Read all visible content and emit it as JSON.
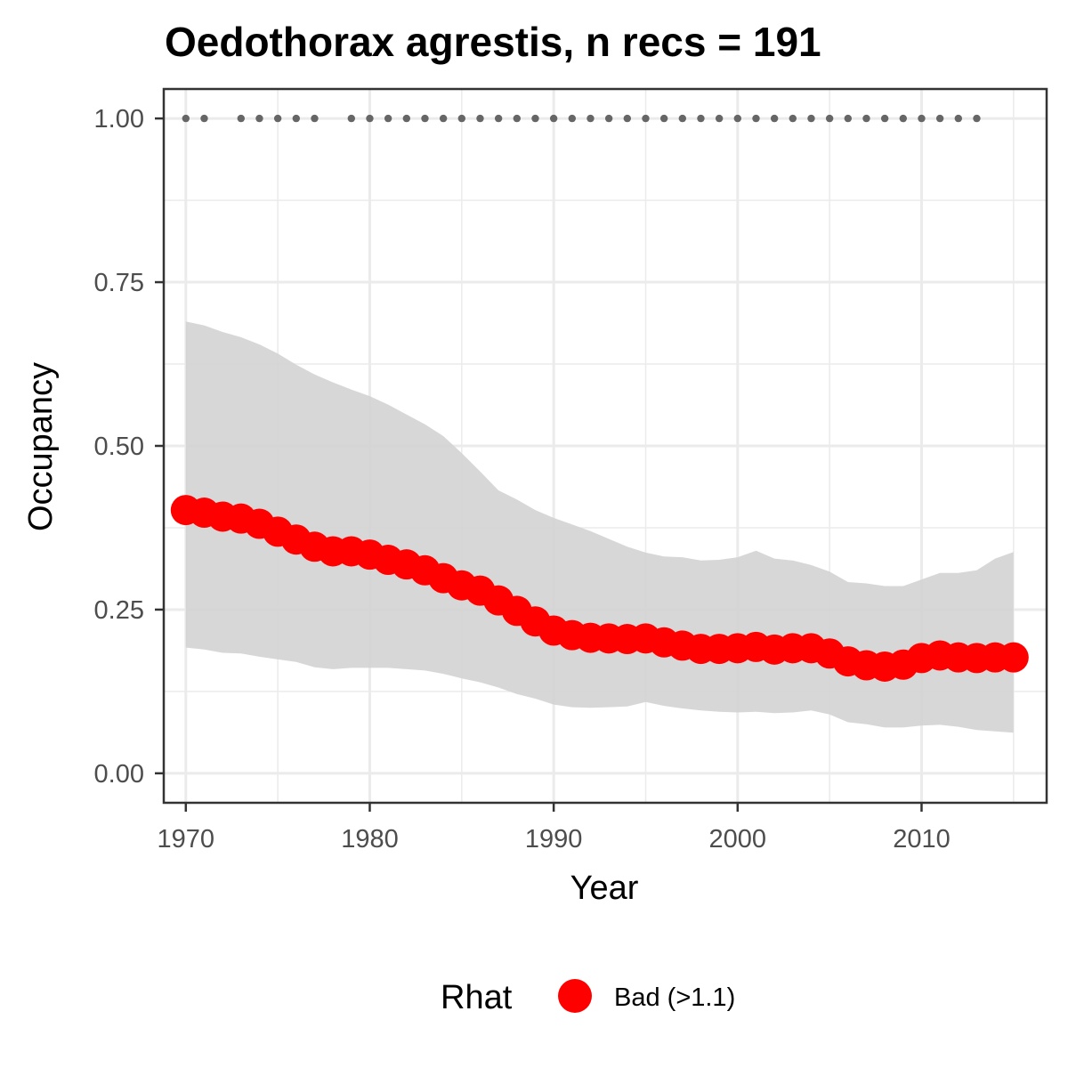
{
  "chart_data": {
    "type": "line",
    "title": "Oedothorax agrestis, n recs = 191",
    "xlabel": "Year",
    "ylabel": "Occupancy",
    "xlim": [
      1968.8,
      2016.8
    ],
    "ylim": [
      -0.045,
      1.045
    ],
    "x_ticks": [
      1970,
      1980,
      1990,
      2000,
      2010
    ],
    "x_tick_labels": [
      "1970",
      "1980",
      "1990",
      "2000",
      "2010"
    ],
    "y_ticks": [
      0,
      0.25,
      0.5,
      0.75,
      1.0
    ],
    "y_tick_labels": [
      "0.00",
      "0.25",
      "0.50",
      "0.75",
      "1.00"
    ],
    "grid": true,
    "legend_position": "bottom",
    "legend_title": "Rhat",
    "series": [
      {
        "name": "Bad (>1.1)",
        "color": "#ff0000",
        "x": [
          1970,
          1971,
          1972,
          1973,
          1974,
          1975,
          1976,
          1977,
          1978,
          1979,
          1980,
          1981,
          1982,
          1983,
          1984,
          1985,
          1986,
          1987,
          1988,
          1989,
          1990,
          1991,
          1992,
          1993,
          1994,
          1995,
          1996,
          1997,
          1998,
          1999,
          2000,
          2001,
          2002,
          2003,
          2004,
          2005,
          2006,
          2007,
          2008,
          2009,
          2010,
          2011,
          2012,
          2013,
          2014,
          2015
        ],
        "values": [
          0.402,
          0.398,
          0.392,
          0.389,
          0.381,
          0.369,
          0.357,
          0.346,
          0.339,
          0.339,
          0.334,
          0.326,
          0.319,
          0.31,
          0.298,
          0.287,
          0.279,
          0.264,
          0.248,
          0.232,
          0.218,
          0.211,
          0.207,
          0.206,
          0.205,
          0.206,
          0.2,
          0.195,
          0.19,
          0.19,
          0.191,
          0.193,
          0.189,
          0.191,
          0.191,
          0.183,
          0.171,
          0.165,
          0.163,
          0.166,
          0.176,
          0.18,
          0.177,
          0.176,
          0.177,
          0.177
        ],
        "upper": [
          0.69,
          0.684,
          0.674,
          0.666,
          0.655,
          0.641,
          0.624,
          0.609,
          0.597,
          0.586,
          0.576,
          0.563,
          0.548,
          0.533,
          0.515,
          0.489,
          0.461,
          0.432,
          0.418,
          0.402,
          0.39,
          0.38,
          0.37,
          0.358,
          0.346,
          0.337,
          0.331,
          0.33,
          0.325,
          0.326,
          0.33,
          0.34,
          0.328,
          0.325,
          0.318,
          0.308,
          0.292,
          0.29,
          0.286,
          0.286,
          0.296,
          0.306,
          0.306,
          0.31,
          0.328,
          0.338
        ],
        "lower": [
          0.192,
          0.189,
          0.184,
          0.183,
          0.178,
          0.174,
          0.17,
          0.162,
          0.159,
          0.161,
          0.161,
          0.161,
          0.159,
          0.157,
          0.152,
          0.145,
          0.139,
          0.131,
          0.121,
          0.114,
          0.105,
          0.101,
          0.1,
          0.101,
          0.102,
          0.109,
          0.103,
          0.099,
          0.096,
          0.094,
          0.093,
          0.094,
          0.092,
          0.093,
          0.096,
          0.09,
          0.078,
          0.075,
          0.07,
          0.07,
          0.073,
          0.074,
          0.071,
          0.066,
          0.064,
          0.062
        ]
      }
    ],
    "records": {
      "color": "#666666",
      "x": [
        1970,
        1971,
        1973,
        1974,
        1975,
        1976,
        1977,
        1979,
        1980,
        1981,
        1982,
        1983,
        1984,
        1985,
        1986,
        1987,
        1988,
        1989,
        1990,
        1991,
        1992,
        1993,
        1994,
        1995,
        1996,
        1997,
        1998,
        1999,
        2000,
        2001,
        2002,
        2003,
        2004,
        2005,
        2006,
        2007,
        2008,
        2009,
        2010,
        2011,
        2012,
        2013
      ],
      "value": 1.0
    },
    "ribbon_color": "#d3d3d3",
    "panel_border_color": "#333333",
    "grid_color": "#ebebeb"
  }
}
